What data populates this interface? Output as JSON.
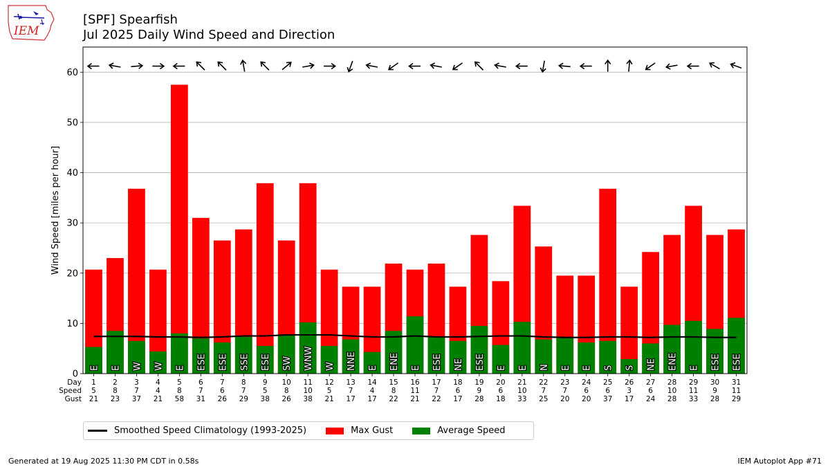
{
  "header": {
    "title_line1": "[SPF] Spearfish",
    "title_line2": "Jul 2025 Daily Wind Speed and Direction",
    "logo_text": "IEM"
  },
  "colors": {
    "gust": "#ff0000",
    "speed": "#008000",
    "climatology": "#000000",
    "grid": "#b0b0b0"
  },
  "legend": {
    "climatology_label": "Smoothed Speed Climatology (1993-2025)",
    "gust_label": "Max Gust",
    "speed_label": "Average Speed"
  },
  "footer": {
    "generated": "Generated at 19 Aug 2025 11:30 PM CDT in 0.58s",
    "app": "IEM Autoplot App #71"
  },
  "chart_data": {
    "type": "bar",
    "ylabel": "Wind Speed [miles per hour]",
    "ylim": [
      0,
      65
    ],
    "yticks": [
      0,
      10,
      20,
      30,
      40,
      50,
      60
    ],
    "grid": true,
    "legend_position": "below",
    "row_labels": [
      "Day",
      "Speed",
      "Gust"
    ],
    "days": [
      1,
      2,
      3,
      4,
      5,
      6,
      7,
      8,
      9,
      10,
      11,
      12,
      13,
      14,
      15,
      16,
      17,
      18,
      19,
      20,
      21,
      22,
      23,
      24,
      25,
      26,
      27,
      28,
      29,
      30,
      31
    ],
    "speed_labels": [
      5,
      8,
      7,
      4,
      8,
      7,
      6,
      7,
      5,
      8,
      10,
      5,
      7,
      4,
      8,
      11,
      7,
      6,
      9,
      6,
      10,
      7,
      7,
      6,
      6,
      3,
      6,
      10,
      11,
      9,
      11
    ],
    "gust_labels": [
      21,
      23,
      37,
      21,
      58,
      31,
      26,
      29,
      38,
      26,
      38,
      21,
      17,
      17,
      22,
      21,
      22,
      17,
      28,
      18,
      33,
      25,
      20,
      20,
      37,
      17,
      24,
      28,
      33,
      28,
      29
    ],
    "direction_labels": [
      "E",
      "E",
      "W",
      "W",
      "E",
      "ESE",
      "ESE",
      "SSE",
      "ESE",
      "SW",
      "WNW",
      "W",
      "NNE",
      "E",
      "ENE",
      "E",
      "ESE",
      "NE",
      "ESE",
      "E",
      "E",
      "N",
      "E",
      "E",
      "S",
      "S",
      "NE",
      "ENE",
      "E",
      "ESE",
      "ESE"
    ],
    "direction_arrow_degrees": [
      270,
      280,
      85,
      90,
      270,
      315,
      315,
      350,
      315,
      50,
      80,
      90,
      200,
      280,
      235,
      270,
      280,
      235,
      315,
      280,
      270,
      190,
      275,
      270,
      0,
      5,
      235,
      260,
      270,
      300,
      290
    ],
    "series": [
      {
        "name": "Max Gust",
        "values": [
          20.7,
          23.0,
          36.8,
          20.7,
          57.5,
          31.0,
          26.5,
          28.7,
          37.9,
          26.5,
          37.9,
          20.7,
          17.3,
          17.3,
          21.9,
          20.7,
          21.9,
          17.3,
          27.6,
          18.4,
          33.4,
          25.3,
          19.5,
          19.5,
          36.8,
          17.3,
          24.2,
          27.6,
          33.4,
          27.6,
          28.7
        ]
      },
      {
        "name": "Average Speed",
        "values": [
          5.3,
          8.5,
          6.5,
          4.4,
          8.0,
          7.0,
          6.2,
          7.3,
          5.5,
          7.8,
          10.2,
          5.5,
          6.8,
          4.3,
          8.5,
          11.4,
          7.4,
          6.5,
          9.5,
          5.7,
          10.3,
          6.8,
          7.1,
          6.2,
          6.5,
          2.9,
          6.0,
          9.7,
          10.5,
          8.9,
          11.1
        ]
      },
      {
        "name": "Smoothed Speed Climatology (1993-2025)",
        "values": [
          7.4,
          7.4,
          7.4,
          7.3,
          7.3,
          7.2,
          7.3,
          7.5,
          7.5,
          7.7,
          7.7,
          7.7,
          7.5,
          7.3,
          7.3,
          7.5,
          7.3,
          7.3,
          7.4,
          7.5,
          7.5,
          7.3,
          7.2,
          7.2,
          7.3,
          7.3,
          7.2,
          7.3,
          7.3,
          7.2,
          7.2
        ]
      }
    ]
  }
}
